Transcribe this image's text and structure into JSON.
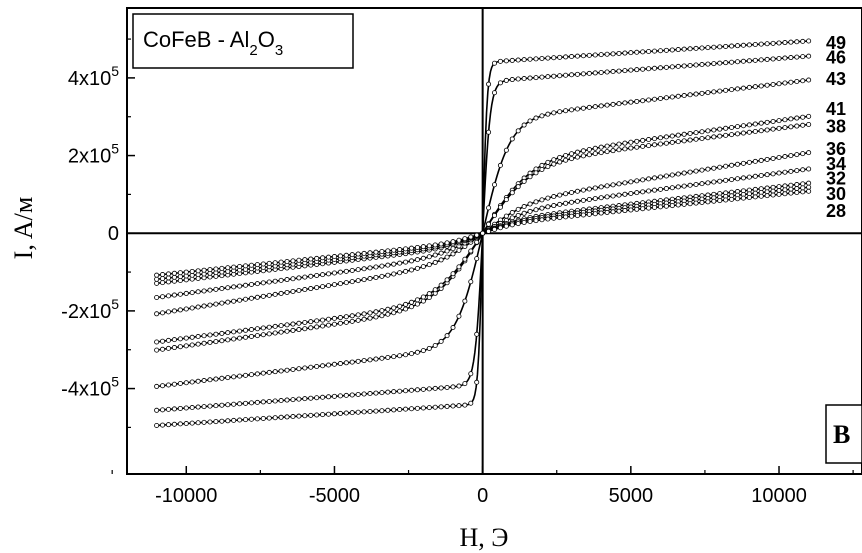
{
  "chart_data": {
    "type": "scatter",
    "xlabel": "H, Э",
    "ylabel": "I, A/м",
    "xlim": [
      -12000,
      12800
    ],
    "ylim": [
      -620000,
      580000
    ],
    "x_ticks": [
      -10000,
      -5000,
      0,
      5000,
      10000
    ],
    "x_tick_labels": [
      "-10000",
      "-5000",
      "0",
      "5000",
      "10000"
    ],
    "y_ticks": [
      -400000,
      -200000,
      0,
      200000,
      400000
    ],
    "y_tick_labels": [
      {
        "base": "-4x10",
        "exp": "5"
      },
      {
        "base": "-2x10",
        "exp": "5"
      },
      {
        "base": "0",
        "exp": ""
      },
      {
        "base": "2x10",
        "exp": "5"
      },
      {
        "base": "4x10",
        "exp": "5"
      }
    ],
    "legend": {
      "main": "CoFeB - Al",
      "sub1": "2",
      "mid": "O",
      "sub2": "3"
    },
    "panel_label": "B",
    "grid": false,
    "x_range": [
      -11000,
      11000
    ],
    "series": [
      {
        "name": "49",
        "ms": 440000,
        "h0": 150,
        "chi": 5.0
      },
      {
        "name": "46",
        "ms": 390000,
        "h0": 250,
        "chi": 6.0
      },
      {
        "name": "43",
        "ms": 290000,
        "h0": 900,
        "chi": 9.5
      },
      {
        "name": "41",
        "ms": 180000,
        "h0": 1600,
        "chi": 11.0
      },
      {
        "name": "38",
        "ms": 170000,
        "h0": 1600,
        "chi": 10.0
      },
      {
        "name": "36",
        "ms": 70000,
        "h0": 1500,
        "chi": 12.5
      },
      {
        "name": "34",
        "ms": 50000,
        "h0": 1500,
        "chi": 10.5
      },
      {
        "name": "32",
        "ms": 30000,
        "h0": 1200,
        "chi": 9.0
      },
      {
        "name": "30",
        "ms": 25000,
        "h0": 1200,
        "chi": 8.5
      },
      {
        "name": "28",
        "ms": 20000,
        "h0": 1200,
        "chi": 8.0
      }
    ],
    "series_label_values": [
      492000,
      455000,
      400000,
      322000,
      277000,
      220000,
      181000,
      143000,
      103000,
      60000
    ]
  }
}
